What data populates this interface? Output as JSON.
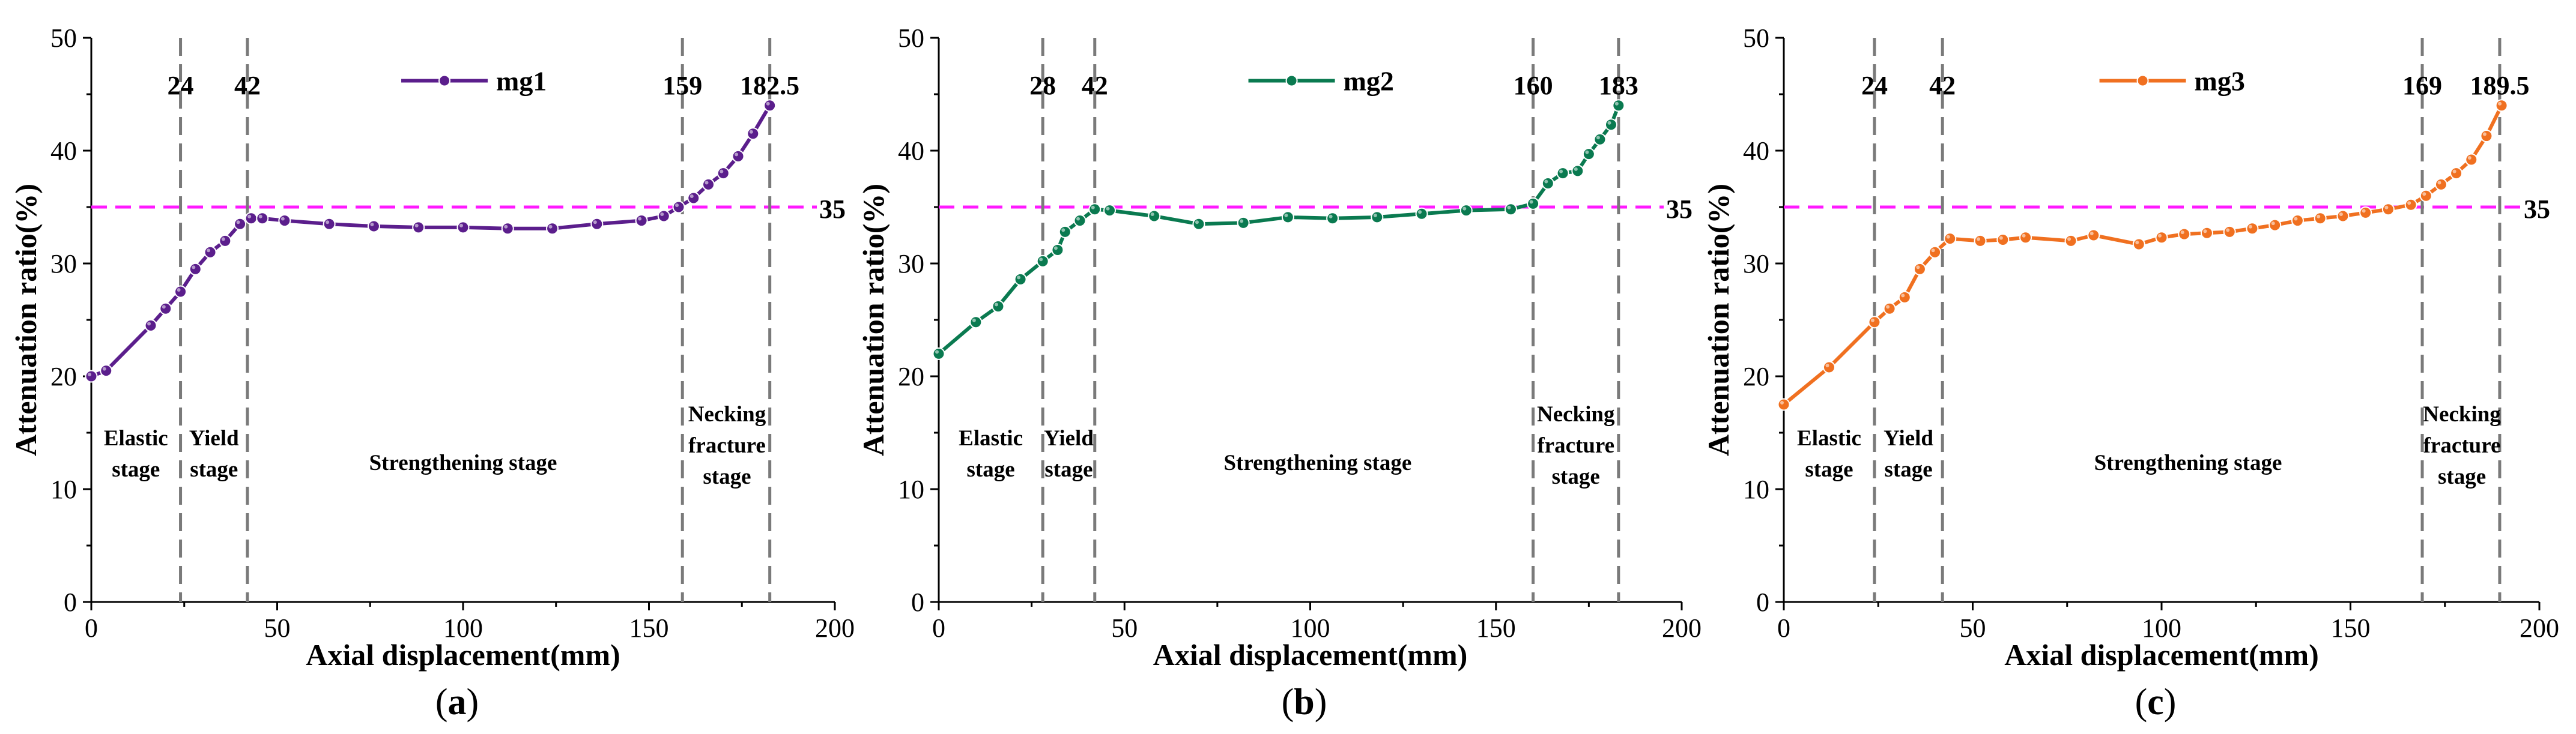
{
  "chart_data": [
    {
      "type": "line",
      "panel_label": "a",
      "xlabel": "Axial displacement(mm)",
      "ylabel": "Attenuation ratio(%)",
      "xlim": [
        0,
        200
      ],
      "ylim": [
        0,
        50
      ],
      "xticks": [
        0,
        50,
        100,
        150,
        200
      ],
      "yticks": [
        0,
        10,
        20,
        30,
        40,
        50
      ],
      "series": [
        {
          "name": "mg1",
          "color": "#5b1e8c",
          "x": [
            0,
            4,
            16,
            20,
            24,
            28,
            32,
            36,
            40,
            43,
            46,
            52,
            64,
            76,
            88,
            100,
            112,
            124,
            136,
            148,
            154,
            158,
            162,
            166,
            170,
            174,
            178,
            182.5
          ],
          "y": [
            20,
            20.5,
            24.5,
            26,
            27.5,
            29.5,
            31,
            32,
            33.5,
            34,
            34,
            33.8,
            33.5,
            33.3,
            33.2,
            33.2,
            33.1,
            33.1,
            33.5,
            33.8,
            34.2,
            35,
            35.8,
            37,
            38,
            39.5,
            41.5,
            44
          ]
        }
      ],
      "hline": {
        "value": 35,
        "label": "35",
        "color": "#ff1aff"
      },
      "vlines": [
        {
          "value": 24,
          "label": "24"
        },
        {
          "value": 42,
          "label": "42"
        },
        {
          "value": 159,
          "label": "159"
        },
        {
          "value": 182.5,
          "label": "182.5"
        }
      ],
      "stages": [
        {
          "lines": [
            "Elastic",
            "stage"
          ],
          "x": 12
        },
        {
          "lines": [
            "Yield",
            "stage"
          ],
          "x": 33
        },
        {
          "lines": [
            "Strengthening stage"
          ],
          "x": 100
        },
        {
          "lines": [
            "Necking",
            "fracture",
            "stage"
          ],
          "x": 171
        }
      ]
    },
    {
      "type": "line",
      "panel_label": "b",
      "xlabel": "Axial displacement(mm)",
      "ylabel": "Attenuation ratio(%)",
      "xlim": [
        0,
        200
      ],
      "ylim": [
        0,
        50
      ],
      "xticks": [
        0,
        50,
        100,
        150,
        200
      ],
      "yticks": [
        0,
        10,
        20,
        30,
        40,
        50
      ],
      "series": [
        {
          "name": "mg2",
          "color": "#0a7a50",
          "x": [
            0,
            10,
            16,
            22,
            28,
            32,
            34,
            38,
            42,
            46,
            58,
            70,
            82,
            94,
            106,
            118,
            130,
            142,
            154,
            160,
            164,
            168,
            172,
            175,
            178,
            181,
            183
          ],
          "y": [
            22,
            24.8,
            26.2,
            28.6,
            30.2,
            31.2,
            32.8,
            33.8,
            34.8,
            34.7,
            34.2,
            33.5,
            33.6,
            34.1,
            34,
            34.1,
            34.4,
            34.7,
            34.8,
            35.3,
            37.1,
            38,
            38.2,
            39.7,
            41,
            42.3,
            44
          ]
        }
      ],
      "hline": {
        "value": 35,
        "label": "35",
        "color": "#ff1aff"
      },
      "vlines": [
        {
          "value": 28,
          "label": "28"
        },
        {
          "value": 42,
          "label": "42"
        },
        {
          "value": 160,
          "label": "160"
        },
        {
          "value": 183,
          "label": "183"
        }
      ],
      "stages": [
        {
          "lines": [
            "Elastic",
            "stage"
          ],
          "x": 14
        },
        {
          "lines": [
            "Yield",
            "stage"
          ],
          "x": 35
        },
        {
          "lines": [
            "Strengthening stage"
          ],
          "x": 102
        },
        {
          "lines": [
            "Necking",
            "fracture",
            "stage"
          ],
          "x": 171.5
        }
      ]
    },
    {
      "type": "line",
      "panel_label": "c",
      "xlabel": "Axial displacement(mm)",
      "ylabel": "Attenuation ratio(%)",
      "xlim": [
        0,
        200
      ],
      "ylim": [
        0,
        50
      ],
      "xticks": [
        0,
        50,
        100,
        150,
        200
      ],
      "yticks": [
        0,
        10,
        20,
        30,
        40,
        50
      ],
      "series": [
        {
          "name": "mg3",
          "color": "#f07020",
          "x": [
            0,
            12,
            24,
            28,
            32,
            36,
            40,
            44,
            52,
            58,
            64,
            76,
            82,
            94,
            100,
            106,
            112,
            118,
            124,
            130,
            136,
            142,
            148,
            154,
            160,
            166,
            170,
            174,
            178,
            182,
            186,
            190
          ],
          "y": [
            17.5,
            20.8,
            24.8,
            26,
            27,
            29.5,
            31,
            32.2,
            32,
            32.1,
            32.3,
            32,
            32.5,
            31.7,
            32.3,
            32.6,
            32.7,
            32.8,
            33.1,
            33.4,
            33.8,
            34,
            34.2,
            34.5,
            34.8,
            35.2,
            36,
            37,
            38,
            39.2,
            41.3,
            44
          ]
        }
      ],
      "hline": {
        "value": 35,
        "label": "35",
        "color": "#ff1aff"
      },
      "vlines": [
        {
          "value": 24,
          "label": "24"
        },
        {
          "value": 42,
          "label": "42"
        },
        {
          "value": 169,
          "label": "169"
        },
        {
          "value": 189.5,
          "label": "189.5"
        }
      ],
      "stages": [
        {
          "lines": [
            "Elastic",
            "stage"
          ],
          "x": 12
        },
        {
          "lines": [
            "Yield",
            "stage"
          ],
          "x": 33
        },
        {
          "lines": [
            "Strengthening stage"
          ],
          "x": 107
        },
        {
          "lines": [
            "Necking",
            "fracture",
            "stage"
          ],
          "x": 179.5
        }
      ]
    }
  ]
}
